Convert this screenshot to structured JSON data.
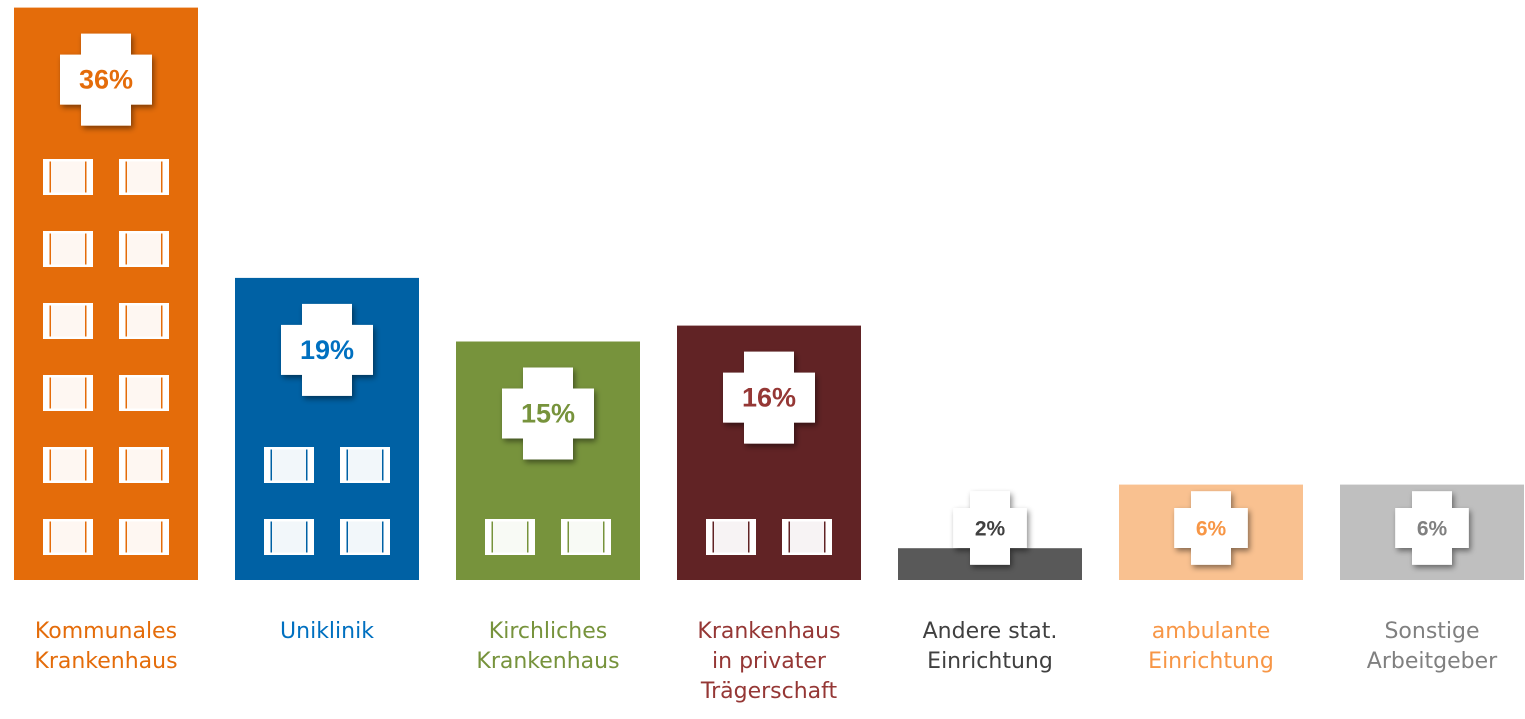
{
  "chart_data": {
    "type": "pictorial-bar",
    "categories": [
      [
        "Kommunales",
        "Krankenhaus"
      ],
      [
        "Uniklinik"
      ],
      [
        "Kirchliches",
        "Krankenhaus"
      ],
      [
        "Krankenhaus",
        "in privater",
        "Trägerschaft"
      ],
      [
        "Andere stat.",
        "Einrichtung"
      ],
      [
        "ambulante",
        "Einrichtung"
      ],
      [
        "Sonstige",
        "Arbeitgeber"
      ]
    ],
    "values": [
      36,
      19,
      15,
      16,
      2,
      6,
      6
    ],
    "value_labels": [
      "36%",
      "19%",
      "15%",
      "16%",
      "2%",
      "6%",
      "6%"
    ],
    "colors": [
      "#e46c0a",
      "#0061a4",
      "#77933c",
      "#612325",
      "#595959",
      "#f9c190",
      "#bfbfbf"
    ],
    "label_colors": [
      "#e46c0a",
      "#0070c0",
      "#77933c",
      "#953735",
      "#404040",
      "#f79646",
      "#808080"
    ]
  }
}
